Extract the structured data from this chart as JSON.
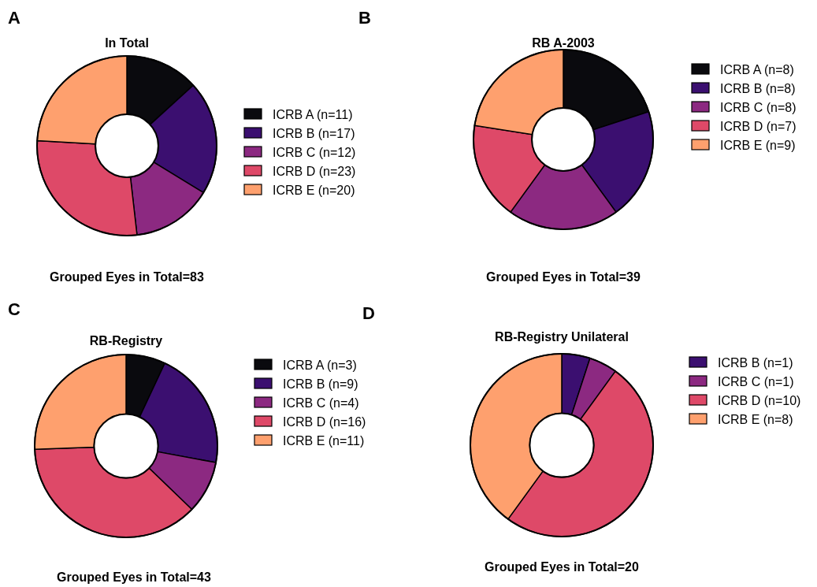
{
  "chart_data": [
    {
      "type": "donut",
      "title": "In Total",
      "categories": [
        "ICRB A (n=11)",
        "ICRB B (n=17)",
        "ICRB C (n=12)",
        "ICRB D (n=23)",
        "ICRB E (n=20)"
      ],
      "values": [
        11,
        17,
        12,
        23,
        20
      ],
      "colors": [
        "#0a0a0e",
        "#3b0f70",
        "#8c2981",
        "#de4968",
        "#fea06e"
      ],
      "legend": "right",
      "annotations": [
        "A",
        "Grouped Eyes in Total=83"
      ]
    },
    {
      "type": "donut",
      "title": "RB A-2003",
      "categories": [
        "ICRB A (n=8)",
        "ICRB B (n=8)",
        "ICRB C (n=8)",
        "ICRB D (n=7)",
        "ICRB E (n=9)"
      ],
      "values": [
        8,
        8,
        8,
        7,
        9
      ],
      "colors": [
        "#0a0a0e",
        "#3b0f70",
        "#8c2981",
        "#de4968",
        "#fea06e"
      ],
      "legend": "right",
      "annotations": [
        "B",
        "Grouped Eyes in Total=39"
      ]
    },
    {
      "type": "donut",
      "title": "RB-Registry",
      "categories": [
        "ICRB A (n=3)",
        "ICRB B (n=9)",
        "ICRB C (n=4)",
        "ICRB D (n=16)",
        "ICRB E (n=11)"
      ],
      "values": [
        3,
        9,
        4,
        16,
        11
      ],
      "colors": [
        "#0a0a0e",
        "#3b0f70",
        "#8c2981",
        "#de4968",
        "#fea06e"
      ],
      "legend": "right",
      "annotations": [
        "C",
        "Grouped Eyes in Total=43"
      ]
    },
    {
      "type": "donut",
      "title": "RB-Registry Unilateral",
      "categories": [
        "ICRB B (n=1)",
        "ICRB C (n=1)",
        "ICRB D (n=10)",
        "ICRB E (n=8)"
      ],
      "values": [
        1,
        1,
        10,
        8
      ],
      "colors": [
        "#3b0f70",
        "#8c2981",
        "#de4968",
        "#fea06e"
      ],
      "legend": "right",
      "annotations": [
        "D",
        "Grouped Eyes in Total=20"
      ]
    }
  ]
}
